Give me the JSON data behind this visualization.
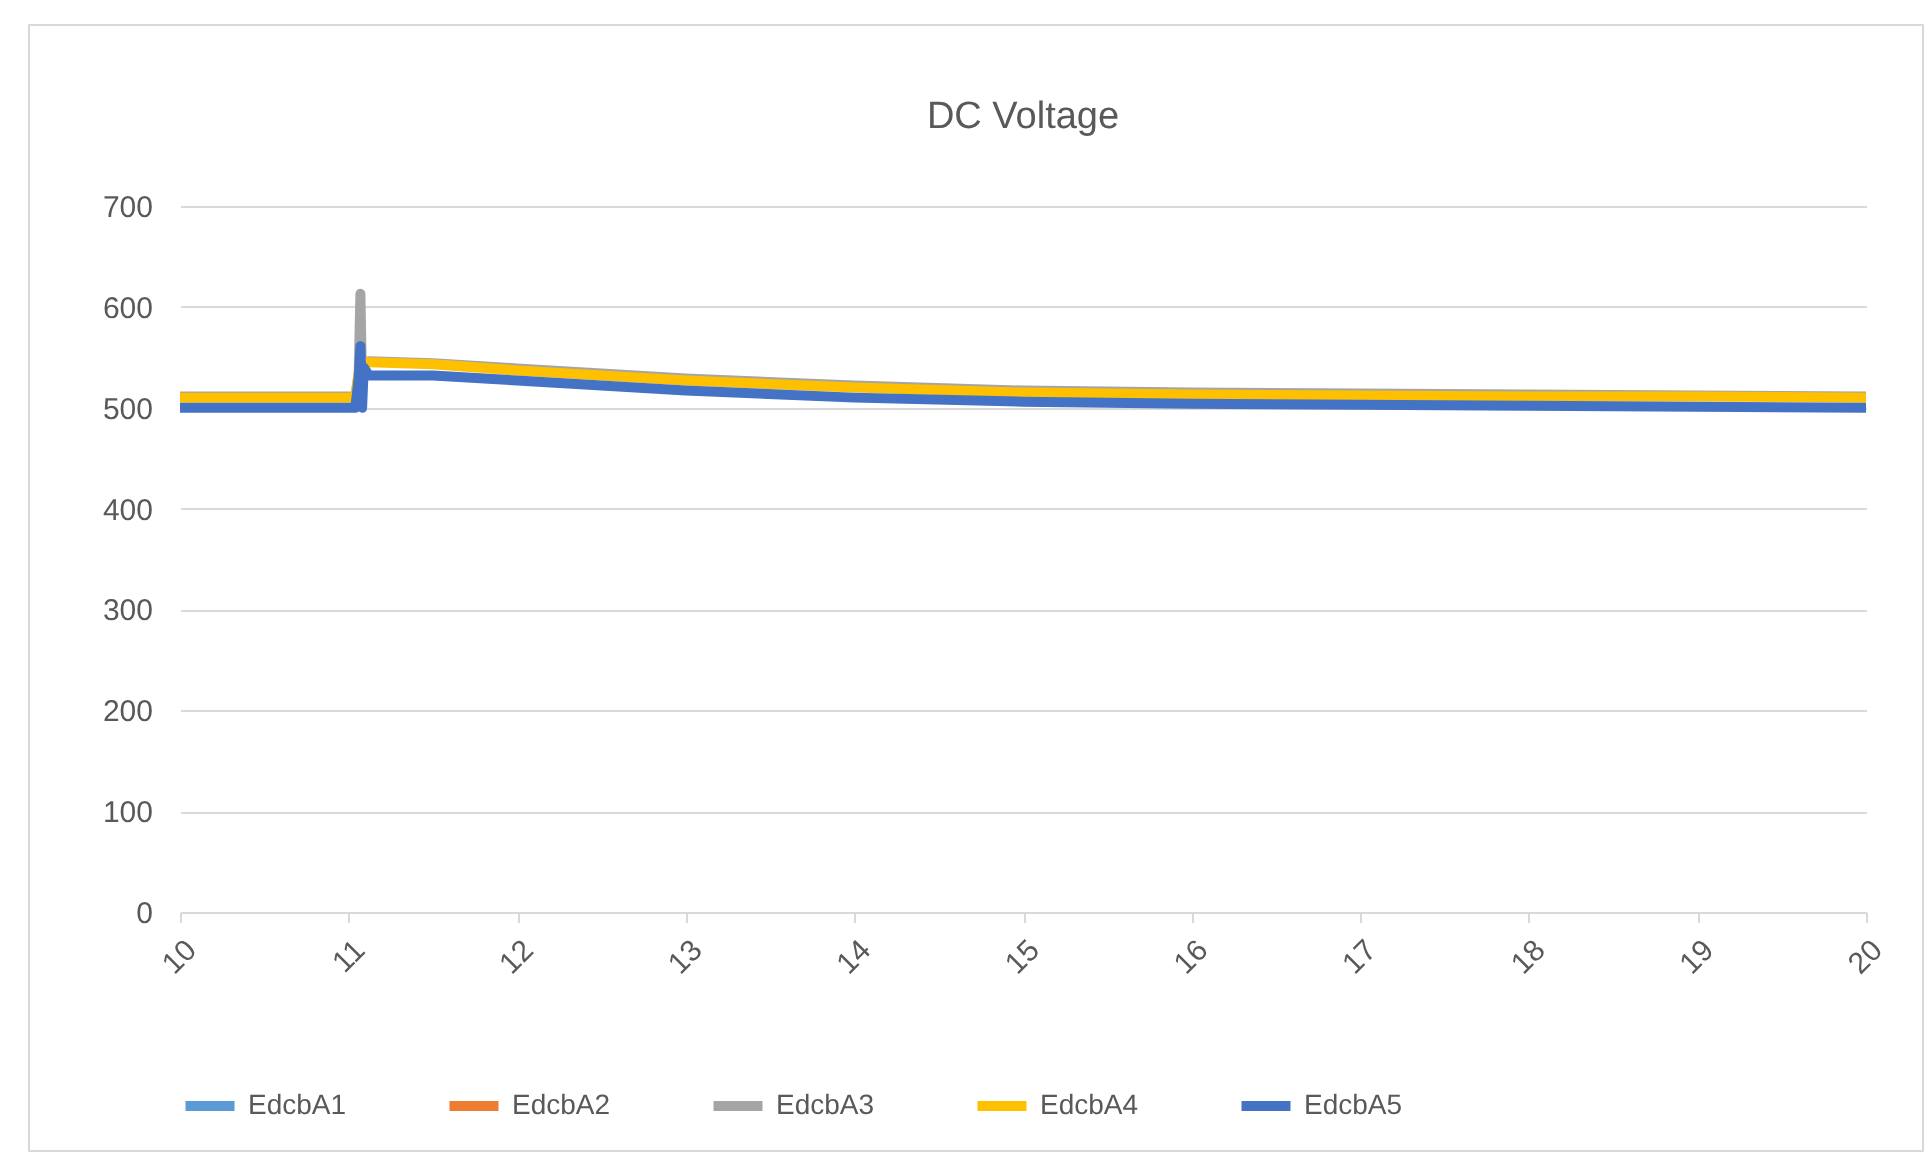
{
  "chart_data": {
    "type": "line",
    "title": "DC Voltage",
    "x": [
      10,
      11,
      11.04,
      11.06,
      11.07,
      11.08,
      11.09,
      11.12,
      11.5,
      12,
      13,
      14,
      15,
      16,
      17,
      18,
      19,
      20
    ],
    "series": [
      {
        "name": "EdcbA1",
        "color": "#5b9bd5",
        "values": [
          null,
          null,
          null,
          null,
          null,
          null,
          null,
          null,
          null,
          null,
          null,
          null,
          null,
          null,
          null,
          null,
          null,
          null
        ]
      },
      {
        "name": "EdcbA2",
        "color": "#ed7d31",
        "values": [
          null,
          null,
          null,
          null,
          null,
          null,
          null,
          null,
          null,
          null,
          null,
          null,
          null,
          null,
          null,
          null,
          null,
          null
        ]
      },
      {
        "name": "EdcbA3",
        "color": "#a5a5a5",
        "values": [
          511,
          511,
          511,
          535,
          613,
          520,
          545,
          546,
          544,
          539,
          529,
          522,
          517,
          515,
          514,
          513,
          512,
          511
        ]
      },
      {
        "name": "EdcbA4",
        "color": "#ffc000",
        "values": [
          510,
          510,
          510,
          535,
          545,
          520,
          545,
          545,
          543,
          537,
          527,
          520,
          515,
          513,
          512,
          511,
          511,
          510
        ]
      },
      {
        "name": "EdcbA5",
        "color": "#4472c4",
        "values": [
          500,
          500,
          500,
          530,
          561,
          500,
          540,
          532,
          532,
          527,
          517,
          510,
          506,
          504,
          503,
          502,
          501,
          500
        ]
      }
    ],
    "xlim": [
      10,
      20
    ],
    "xticks": [
      10,
      11,
      12,
      13,
      14,
      15,
      16,
      17,
      18,
      19,
      20
    ],
    "ylim": [
      0,
      700
    ],
    "yticks": [
      0,
      100,
      200,
      300,
      400,
      500,
      600,
      700
    ],
    "grid": "y",
    "legend": "bottom",
    "marker": "none",
    "line_style": "solid"
  }
}
